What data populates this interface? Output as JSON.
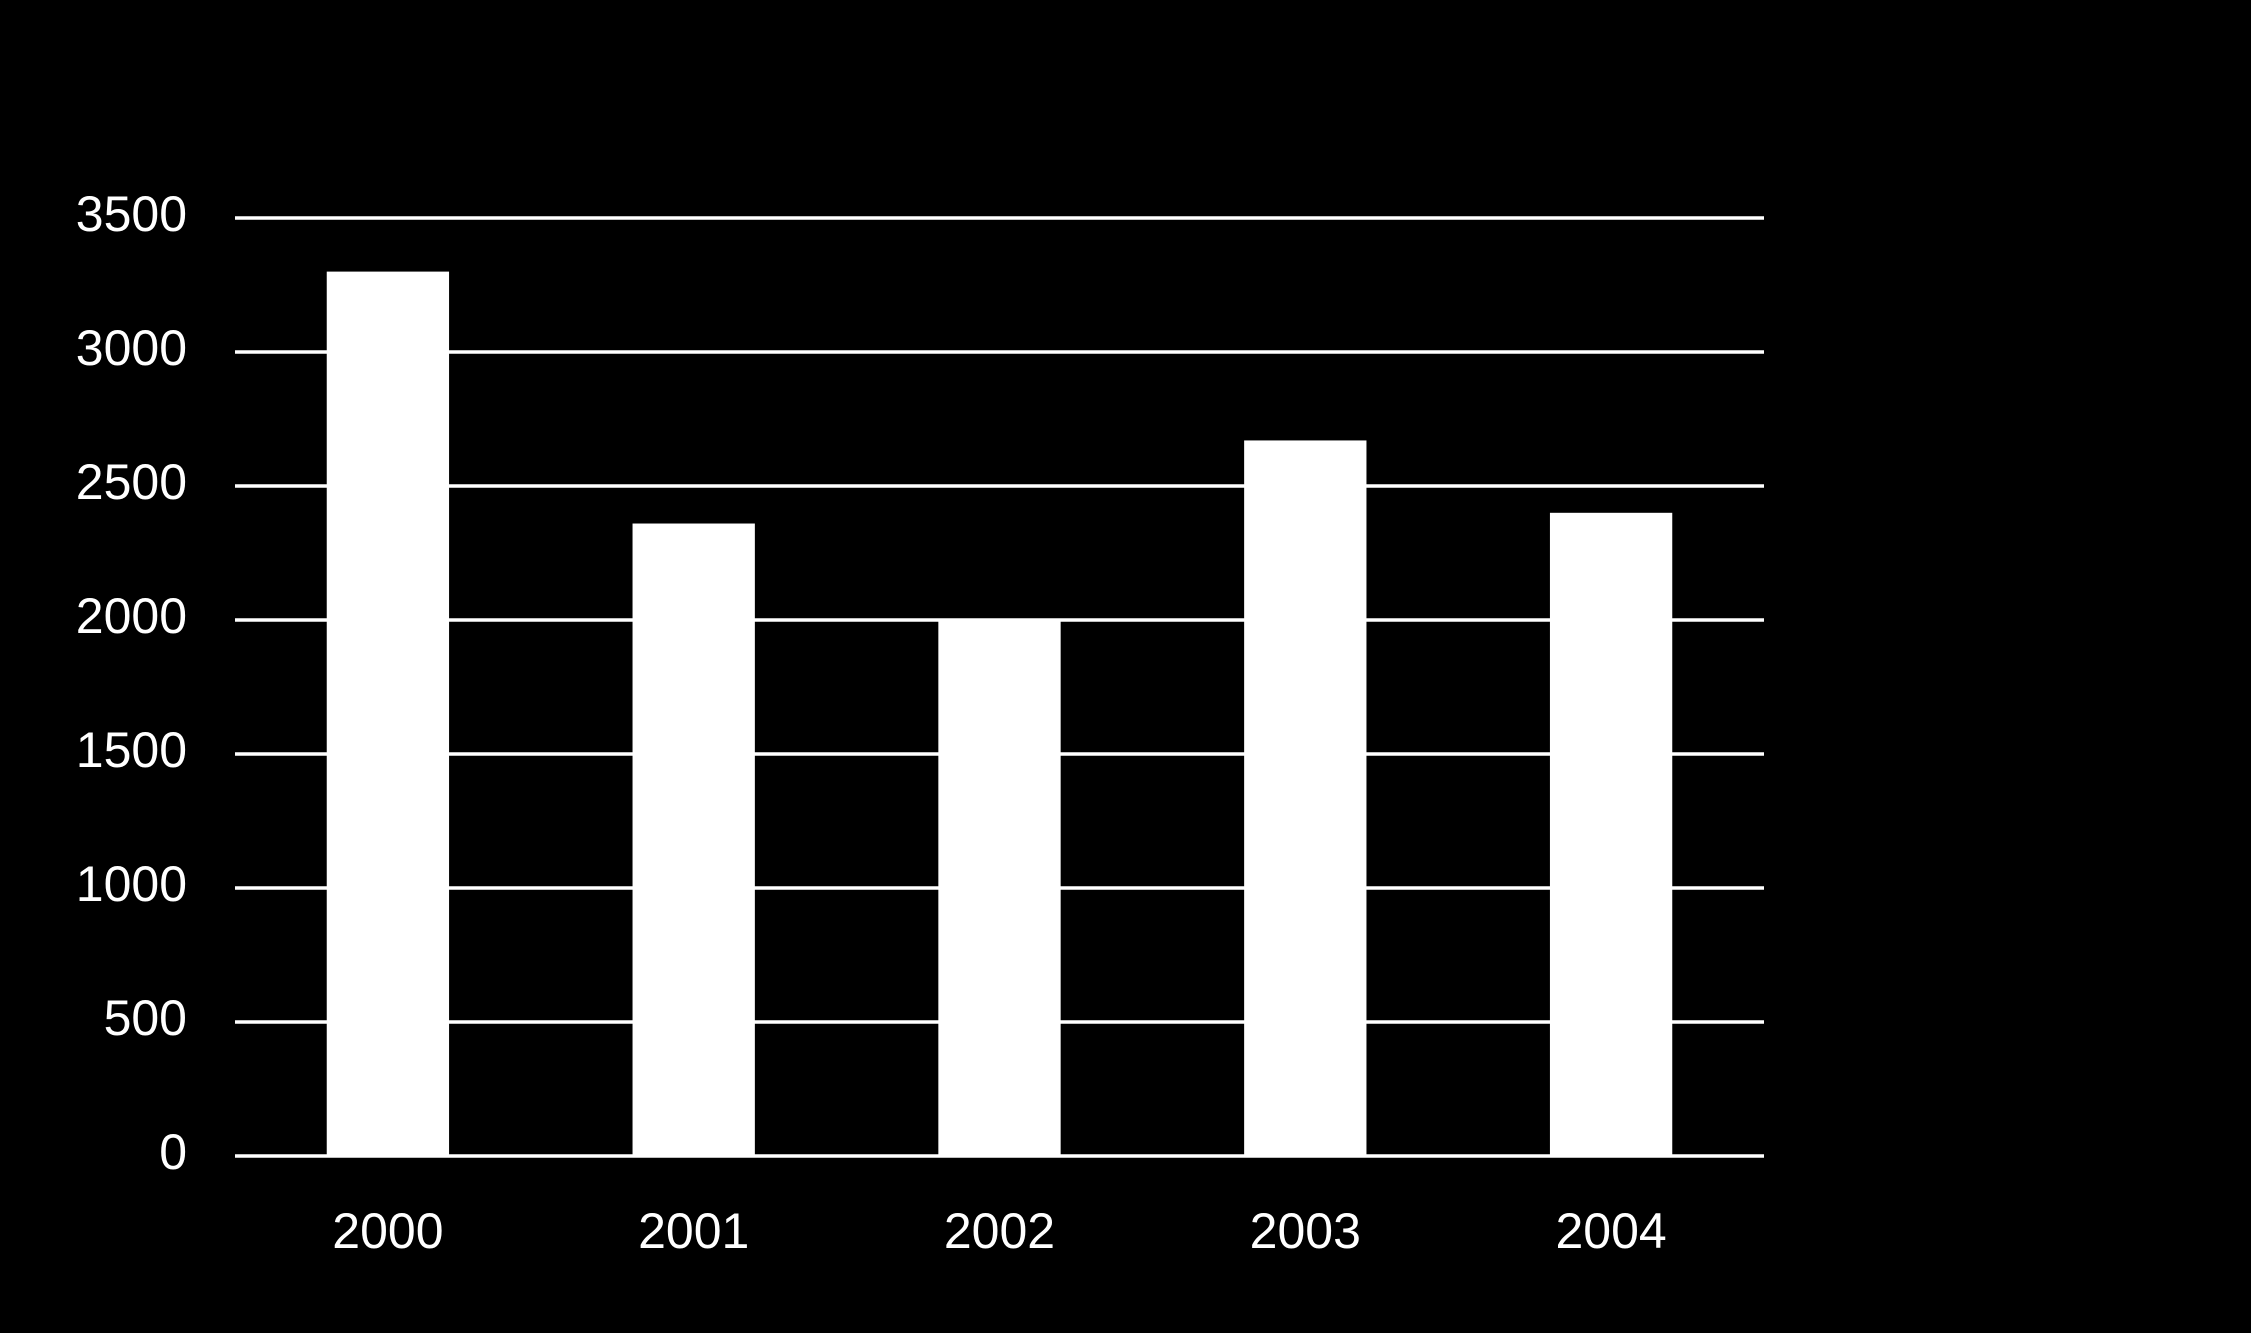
{
  "chart_data": {
    "type": "bar",
    "categories": [
      "2000",
      "2001",
      "2002",
      "2003",
      "2004"
    ],
    "values": [
      3300,
      2360,
      2000,
      2670,
      2400
    ],
    "color": "#ffffff",
    "ylim": [
      0,
      3500
    ],
    "yticks": [
      0,
      500,
      1000,
      1500,
      2000,
      2500,
      3000,
      3500
    ],
    "grid": true
  }
}
